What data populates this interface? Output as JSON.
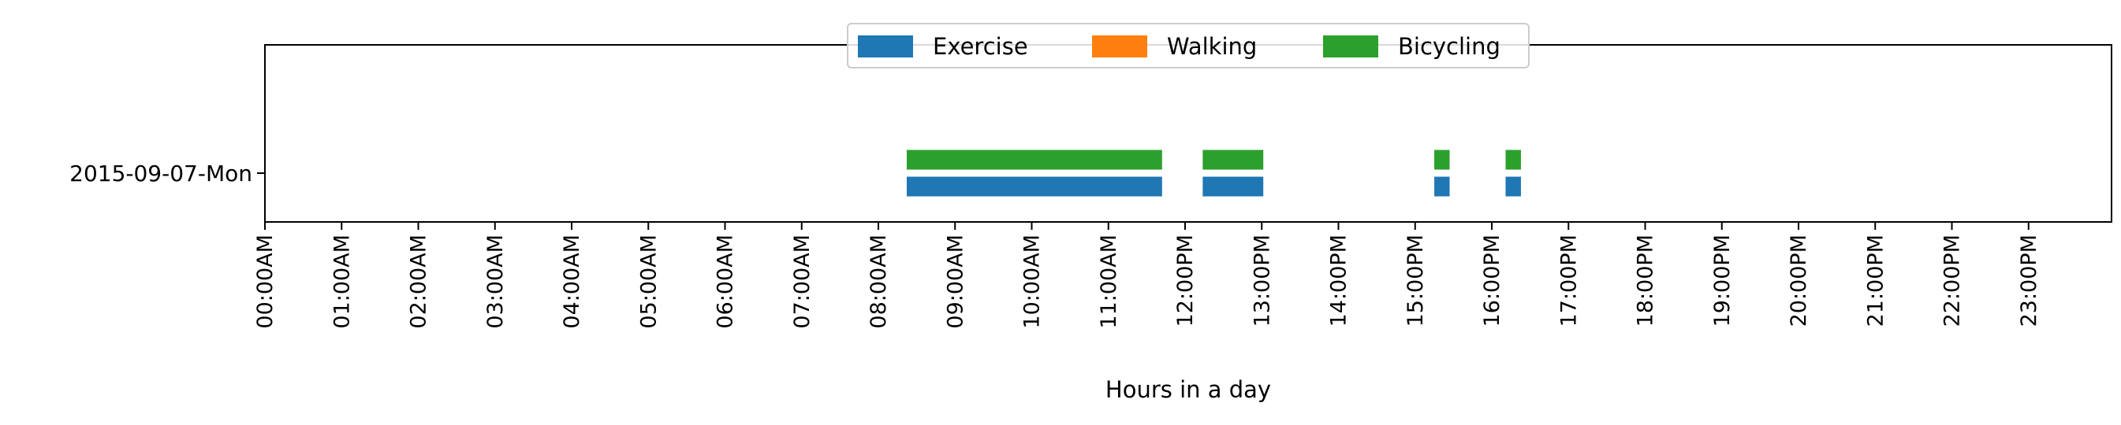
{
  "chart_data": {
    "type": "bar",
    "title": "",
    "xlabel": "Hours in a day",
    "ylabel": "",
    "xlim": [
      0,
      24
    ],
    "x_ticks": [
      "00:00AM",
      "01:00AM",
      "02:00AM",
      "03:00AM",
      "04:00AM",
      "05:00AM",
      "06:00AM",
      "07:00AM",
      "08:00AM",
      "09:00AM",
      "10:00AM",
      "11:00AM",
      "12:00PM",
      "13:00PM",
      "14:00PM",
      "15:00PM",
      "16:00PM",
      "17:00PM",
      "18:00PM",
      "19:00PM",
      "20:00PM",
      "21:00PM",
      "22:00PM",
      "23:00PM"
    ],
    "categories": [
      "2015-09-07-Mon"
    ],
    "legend_position": "upper-center",
    "grid": false,
    "series": [
      {
        "name": "Exercise",
        "color": "#1f77b4",
        "intervals": [
          [
            8.37,
            11.7
          ],
          [
            12.23,
            13.02
          ],
          [
            15.25,
            15.45
          ],
          [
            16.18,
            16.38
          ]
        ]
      },
      {
        "name": "Walking",
        "color": "#ff7f0e",
        "intervals": []
      },
      {
        "name": "Bicycling",
        "color": "#2ca02c",
        "intervals": [
          [
            8.37,
            11.7
          ],
          [
            12.23,
            13.02
          ],
          [
            15.25,
            15.45
          ],
          [
            16.18,
            16.38
          ]
        ]
      }
    ]
  }
}
